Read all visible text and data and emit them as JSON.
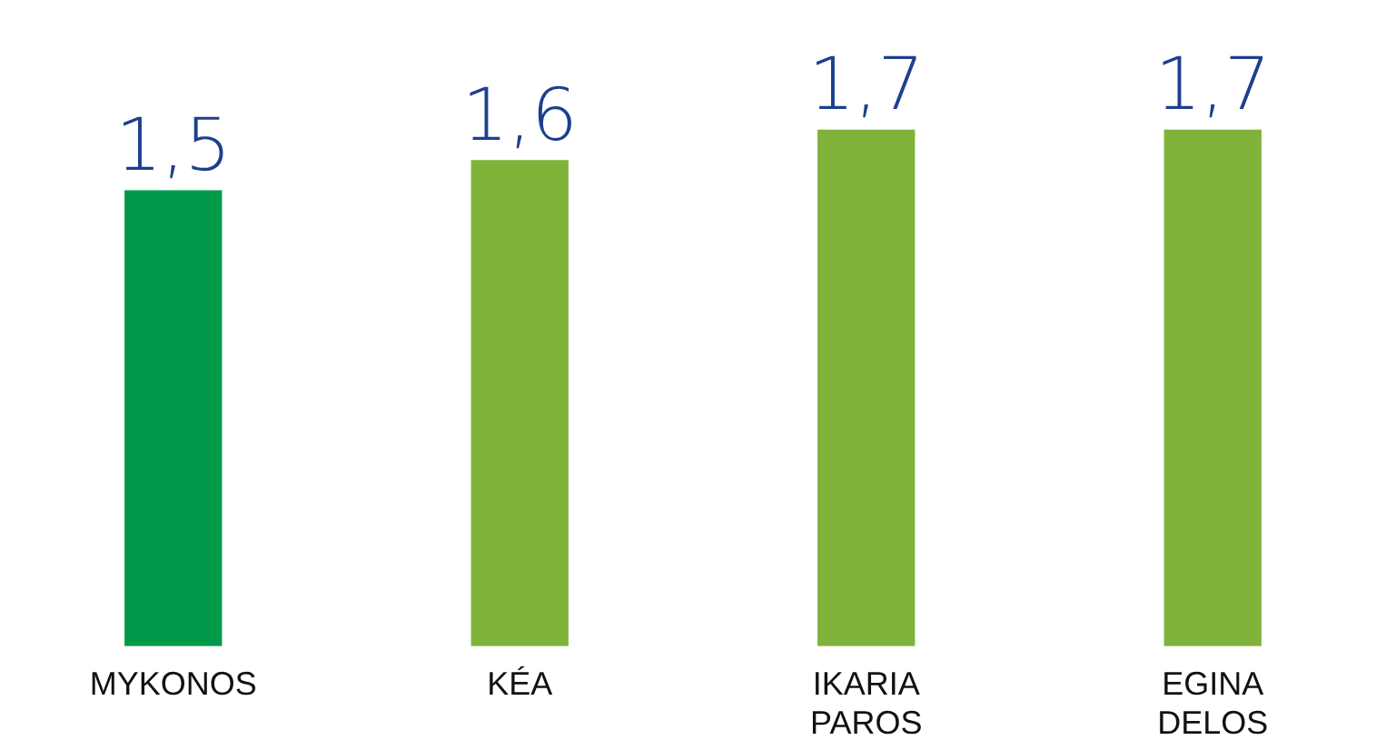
{
  "chart_data": {
    "type": "bar",
    "categories": [
      "MYKONOS",
      "KÉA",
      "IKARIA PAROS",
      "EGINA DELOS"
    ],
    "values": [
      1.5,
      1.6,
      1.7,
      1.7
    ],
    "colors": [
      "#009a4a",
      "#80b33a",
      "#80b33a",
      "#80b33a"
    ],
    "value_labels": [
      "1,5",
      "1,6",
      "1,7",
      "1,7"
    ],
    "tick_labels": "x"
  }
}
